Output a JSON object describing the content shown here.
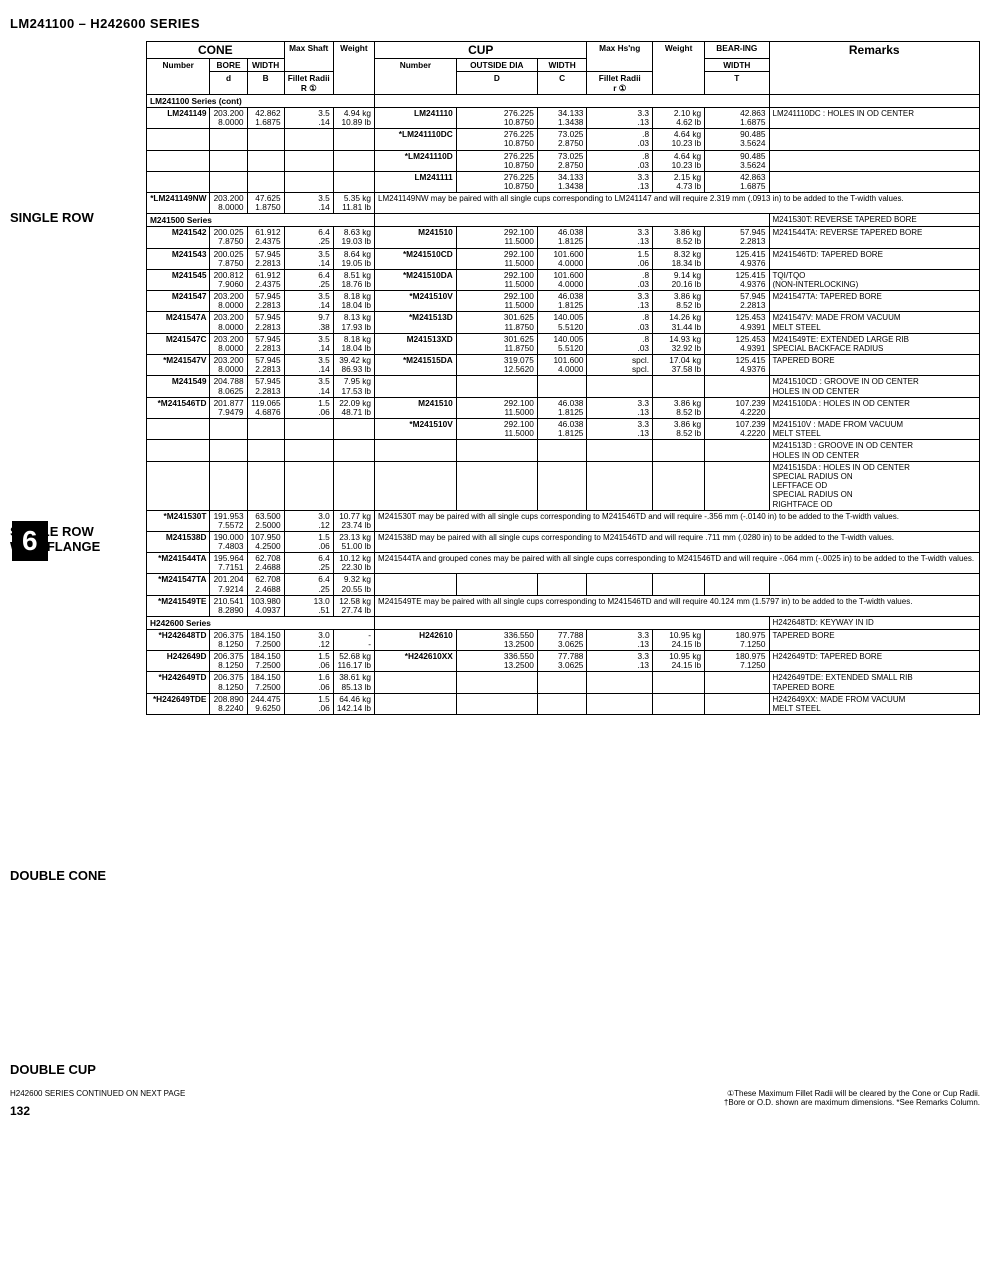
{
  "title": "LM241100 – H242600 SERIES",
  "sidebar": {
    "l1": "SINGLE ROW",
    "l2a": "SINGLE ROW",
    "l2b": "WITH FLANGE",
    "l3": "DOUBLE CONE",
    "l4": "DOUBLE CUP",
    "big": "6"
  },
  "head": {
    "cone": "CONE",
    "cup": "CUP",
    "maxs": "Max Shaft",
    "maxh": "Max Hs'ng",
    "bear": "BEAR-ING",
    "remarks": "Remarks",
    "number": "Number",
    "bore": "BORE",
    "width": "WIDTH",
    "fillet": "Fillet Radii",
    "weight": "Weight",
    "outside": "OUTSIDE DIA",
    "d": "d",
    "B": "B",
    "R": "R ①",
    "D": "D",
    "C": "C",
    "r": "r ①",
    "T": "T"
  },
  "rows": [
    {
      "s": "LM241100 Series (cont)"
    },
    {
      "n": "LM241149",
      "d": "203.200",
      "d2": "8.0000",
      "B": "42.862",
      "B2": "1.6875",
      "R": "3.5",
      "R2": ".14",
      "w": "4.94 kg",
      "w2": "10.89 lb",
      "cn": "LM241110",
      "D": "276.225",
      "D2": "10.8750",
      "C": "34.133",
      "C2": "1.3438",
      "r": "3.3",
      "r2": ".13",
      "wt": "2.10 kg",
      "wt2": "4.62 lb",
      "T": "42.863",
      "T2": "1.6875",
      "rem": "LM241110DC : HOLES IN OD CENTER"
    },
    {
      "cn": "*LM241110DC",
      "D": "276.225",
      "D2": "10.8750",
      "C": "73.025",
      "C2": "2.8750",
      "r": ".8",
      "r2": ".03",
      "wt": "4.64 kg",
      "wt2": "10.23 lb",
      "T": "90.485",
      "T2": "3.5624"
    },
    {
      "cn": "*LM241110D",
      "D": "276.225",
      "D2": "10.8750",
      "C": "73.025",
      "C2": "2.8750",
      "r": ".8",
      "r2": ".03",
      "wt": "4.64 kg",
      "wt2": "10.23 lb",
      "T": "90.485",
      "T2": "3.5624"
    },
    {
      "cn": "LM241111",
      "D": "276.225",
      "D2": "10.8750",
      "C": "34.133",
      "C2": "1.3438",
      "r": "3.3",
      "r2": ".13",
      "wt": "2.15 kg",
      "wt2": "4.73 lb",
      "T": "42.863",
      "T2": "1.6875"
    },
    {
      "n": "*LM241149NW",
      "d": "203.200",
      "d2": "8.0000",
      "B": "47.625",
      "B2": "1.8750",
      "R": "3.5",
      "R2": ".14",
      "w": "5.35 kg",
      "w2": "11.81 lb",
      "note": "LM241149NW may be paired with all single cups corresponding to LM241147 and will require 2.319 mm (.0913 in) to be added to the T-width values."
    },
    {
      "s": "M241500 Series",
      "rem": "M241530T: REVERSE TAPERED BORE"
    },
    {
      "n": "M241542",
      "d": "200.025",
      "d2": "7.8750",
      "B": "61.912",
      "B2": "2.4375",
      "R": "6.4",
      "R2": ".25",
      "w": "8.63 kg",
      "w2": "19.03 lb",
      "cn": "M241510",
      "D": "292.100",
      "D2": "11.5000",
      "C": "46.038",
      "C2": "1.8125",
      "r": "3.3",
      "r2": ".13",
      "wt": "3.86 kg",
      "wt2": "8.52 lb",
      "T": "57.945",
      "T2": "2.2813",
      "rem": "M241544TA: REVERSE TAPERED BORE"
    },
    {
      "n": "M241543",
      "d": "200.025",
      "d2": "7.8750",
      "B": "57.945",
      "B2": "2.2813",
      "R": "3.5",
      "R2": ".14",
      "w": "8.64 kg",
      "w2": "19.05 lb",
      "cn": "*M241510CD",
      "D": "292.100",
      "D2": "11.5000",
      "C": "101.600",
      "C2": "4.0000",
      "r": "1.5",
      "r2": ".06",
      "wt": "8.32 kg",
      "wt2": "18.34 lb",
      "T": "125.415",
      "T2": "4.9376",
      "rem": "M241546TD: TAPERED BORE"
    },
    {
      "n": "M241545",
      "d": "200.812",
      "d2": "7.9060",
      "B": "61.912",
      "B2": "2.4375",
      "R": "6.4",
      "R2": ".25",
      "w": "8.51 kg",
      "w2": "18.76 lb",
      "cn": "*M241510DA",
      "D": "292.100",
      "D2": "11.5000",
      "C": "101.600",
      "C2": "4.0000",
      "r": ".8",
      "r2": ".03",
      "wt": "9.14 kg",
      "wt2": "20.16 lb",
      "T": "125.415",
      "T2": "4.9376",
      "rem": "TQI/TQO\n(NON-INTERLOCKING)"
    },
    {
      "n": "M241547",
      "d": "203.200",
      "d2": "8.0000",
      "B": "57.945",
      "B2": "2.2813",
      "R": "3.5",
      "R2": ".14",
      "w": "8.18 kg",
      "w2": "18.04 lb",
      "cn": "*M241510V",
      "D": "292.100",
      "D2": "11.5000",
      "C": "46.038",
      "C2": "1.8125",
      "r": "3.3",
      "r2": ".13",
      "wt": "3.86 kg",
      "wt2": "8.52 lb",
      "T": "57.945",
      "T2": "2.2813",
      "rem": "M241547TA: TAPERED BORE"
    },
    {
      "n": "M241547A",
      "d": "203.200",
      "d2": "8.0000",
      "B": "57.945",
      "B2": "2.2813",
      "R": "9.7",
      "R2": ".38",
      "w": "8.13 kg",
      "w2": "17.93 lb",
      "cn": "*M241513D",
      "D": "301.625",
      "D2": "11.8750",
      "C": "140.005",
      "C2": "5.5120",
      "r": ".8",
      "r2": ".03",
      "wt": "14.26 kg",
      "wt2": "31.44 lb",
      "T": "125.453",
      "T2": "4.9391",
      "rem": "M241547V: MADE FROM VACUUM\nMELT STEEL"
    },
    {
      "n": "M241547C",
      "d": "203.200",
      "d2": "8.0000",
      "B": "57.945",
      "B2": "2.2813",
      "R": "3.5",
      "R2": ".14",
      "w": "8.18 kg",
      "w2": "18.04 lb",
      "cn": "M241513XD",
      "D": "301.625",
      "D2": "11.8750",
      "C": "140.005",
      "C2": "5.5120",
      "r": ".8",
      "r2": ".03",
      "wt": "14.93 kg",
      "wt2": "32.92 lb",
      "T": "125.453",
      "T2": "4.9391",
      "rem": "M241549TE: EXTENDED LARGE RIB\nSPECIAL BACKFACE RADIUS"
    },
    {
      "n": "*M241547V",
      "d": "203.200",
      "d2": "8.0000",
      "B": "57.945",
      "B2": "2.2813",
      "R": "3.5",
      "R2": ".14",
      "w": "39.42 kg",
      "w2": "86.93 lb",
      "cn": "*M241515DA",
      "D": "319.075",
      "D2": "12.5620",
      "C": "101.600",
      "C2": "4.0000",
      "r": "spcl.",
      "r2": "spcl.",
      "wt": "17.04 kg",
      "wt2": "37.58 lb",
      "T": "125.415",
      "T2": "4.9376",
      "rem": "TAPERED BORE"
    },
    {
      "n": "M241549",
      "d": "204.788",
      "d2": "8.0625",
      "B": "57.945",
      "B2": "2.2813",
      "R": "3.5",
      "R2": ".14",
      "w": "7.95 kg",
      "w2": "17.53 lb",
      "rem": "M241510CD : GROOVE IN OD CENTER\nHOLES IN OD CENTER"
    },
    {
      "n": "*M241546TD",
      "d": "201.877",
      "d2": "7.9479",
      "B": "119.065",
      "B2": "4.6876",
      "R": "1.5",
      "R2": ".06",
      "w": "22.09 kg",
      "w2": "48.71 lb",
      "cn": "M241510",
      "D": "292.100",
      "D2": "11.5000",
      "C": "46.038",
      "C2": "1.8125",
      "r": "3.3",
      "r2": ".13",
      "wt": "3.86 kg",
      "wt2": "8.52 lb",
      "T": "107.239",
      "T2": "4.2220",
      "rem": "M241510DA : HOLES IN OD CENTER"
    },
    {
      "cn": "*M241510V",
      "D": "292.100",
      "D2": "11.5000",
      "C": "46.038",
      "C2": "1.8125",
      "r": "3.3",
      "r2": ".13",
      "wt": "3.86 kg",
      "wt2": "8.52 lb",
      "T": "107.239",
      "T2": "4.2220",
      "rem": "M241510V : MADE FROM VACUUM\nMELT STEEL"
    },
    {
      "rem": "M241513D : GROOVE IN OD CENTER\nHOLES IN OD CENTER"
    },
    {
      "rem": "M241515DA : HOLES IN OD CENTER\nSPECIAL RADIUS ON\nLEFTFACE OD\nSPECIAL RADIUS ON\nRIGHTFACE OD"
    },
    {
      "n": "*M241530T",
      "d": "191.953",
      "d2": "7.5572",
      "B": "63.500",
      "B2": "2.5000",
      "R": "3.0",
      "R2": ".12",
      "w": "10.77 kg",
      "w2": "23.74 lb",
      "note": "M241530T may be paired with all single cups corresponding to M241546TD and will require -.356 mm (-.0140 in) to be added to the T-width values."
    },
    {
      "n": "M241538D",
      "d": "190.000",
      "d2": "7.4803",
      "B": "107.950",
      "B2": "4.2500",
      "R": "1.5",
      "R2": ".06",
      "w": "23.13 kg",
      "w2": "51.00 lb",
      "note": "M241538D may be paired with all single cups corresponding to M241546TD and will require .711 mm (.0280 in) to be added to the T-width values."
    },
    {
      "n": "*M241544TA",
      "d": "195.964",
      "d2": "7.7151",
      "B": "62.708",
      "B2": "2.4688",
      "R": "6.4",
      "R2": ".25",
      "w": "10.12 kg",
      "w2": "22.30 lb",
      "note": "M241544TA and grouped cones may be paired with all single cups corresponding to M241546TD and will require -.064 mm (-.0025 in) to be added to the T-width values."
    },
    {
      "n": "*M241547TA",
      "d": "201.204",
      "d2": "7.9214",
      "B": "62.708",
      "B2": "2.4688",
      "R": "6.4",
      "R2": ".25",
      "w": "9.32 kg",
      "w2": "20.55 lb"
    },
    {
      "n": "*M241549TE",
      "d": "210.541",
      "d2": "8.2890",
      "B": "103.980",
      "B2": "4.0937",
      "R": "13.0",
      "R2": ".51",
      "w": "12.58 kg",
      "w2": "27.74 lb",
      "note": "M241549TE may be paired with all single cups corresponding to M241546TD and will require 40.124 mm (1.5797 in) to be added to the T-width values."
    },
    {
      "s": "H242600 Series",
      "rem": "H242648TD: KEYWAY IN ID"
    },
    {
      "n": "*H242648TD",
      "d": "206.375",
      "d2": "8.1250",
      "B": "184.150",
      "B2": "7.2500",
      "R": "3.0",
      "R2": ".12",
      "w": "-",
      "w2": "-",
      "cn": "H242610",
      "D": "336.550",
      "D2": "13.2500",
      "C": "77.788",
      "C2": "3.0625",
      "r": "3.3",
      "r2": ".13",
      "wt": "10.95 kg",
      "wt2": "24.15 lb",
      "T": "180.975",
      "T2": "7.1250",
      "rem": "TAPERED BORE"
    },
    {
      "n": "H242649D",
      "d": "206.375",
      "d2": "8.1250",
      "B": "184.150",
      "B2": "7.2500",
      "R": "1.5",
      "R2": ".06",
      "w": "52.68 kg",
      "w2": "116.17 lb",
      "cn": "*H242610XX",
      "D": "336.550",
      "D2": "13.2500",
      "C": "77.788",
      "C2": "3.0625",
      "r": "3.3",
      "r2": ".13",
      "wt": "10.95 kg",
      "wt2": "24.15 lb",
      "T": "180.975",
      "T2": "7.1250",
      "rem": "H242649TD: TAPERED BORE"
    },
    {
      "n": "*H242649TD",
      "d": "206.375",
      "d2": "8.1250",
      "B": "184.150",
      "B2": "7.2500",
      "R": "1.6",
      "R2": ".06",
      "w": "38.61 kg",
      "w2": "85.13 lb",
      "rem": "H242649TDE: EXTENDED SMALL RIB\nTAPERED BORE"
    },
    {
      "n": "*H242649TDE",
      "d": "208.890",
      "d2": "8.2240",
      "B": "244.475",
      "B2": "9.6250",
      "R": "1.5",
      "R2": ".06",
      "w": "64.46 kg",
      "w2": "142.14 lb",
      "rem": "H242649XX: MADE FROM VACUUM\nMELT STEEL"
    }
  ],
  "foot": {
    "left": "H242600 SERIES CONTINUED ON NEXT PAGE",
    "r1": "①These Maximum Fillet Radii will be cleared by the Cone or Cup Radii.",
    "r2": "†Bore or O.D. shown are maximum dimensions.   *See Remarks Column.",
    "pn": "132"
  }
}
